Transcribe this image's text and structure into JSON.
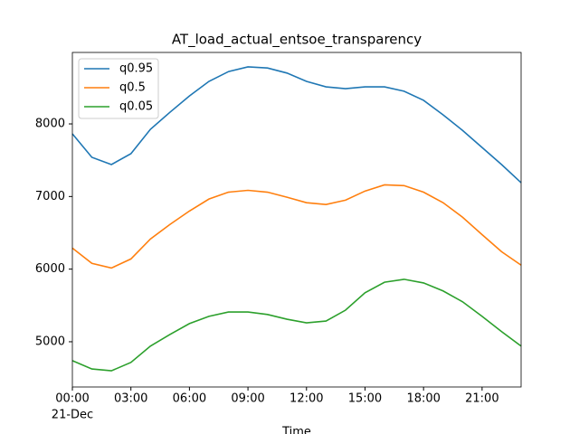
{
  "chart_data": {
    "type": "line",
    "title": "AT_load_actual_entsoe_transparency",
    "x_label": "Time",
    "x": [
      0,
      1,
      2,
      3,
      4,
      5,
      6,
      7,
      8,
      9,
      10,
      11,
      12,
      13,
      14,
      15,
      16,
      17,
      18,
      19,
      20,
      21,
      22,
      23
    ],
    "xlim": [
      0,
      23
    ],
    "xticks": [
      {
        "value": 0,
        "label": "00:00"
      },
      {
        "value": 3,
        "label": "03:00"
      },
      {
        "value": 6,
        "label": "06:00"
      },
      {
        "value": 9,
        "label": "09:00"
      },
      {
        "value": 12,
        "label": "12:00"
      },
      {
        "value": 15,
        "label": "15:00"
      },
      {
        "value": 18,
        "label": "18:00"
      },
      {
        "value": 21,
        "label": "21:00"
      }
    ],
    "x_date_label": "21-Dec",
    "ylim": [
      4377,
      8984
    ],
    "yticks": [
      5000,
      6000,
      7000,
      8000
    ],
    "legend": "upper left",
    "series": [
      {
        "name": "q0.95",
        "color": "#1f77b4",
        "values": [
          7863,
          7540,
          7440,
          7590,
          7925,
          8160,
          8385,
          8585,
          8720,
          8785,
          8770,
          8700,
          8585,
          8510,
          8485,
          8510,
          8510,
          8450,
          8325,
          8125,
          7910,
          7675,
          7440,
          7190
        ]
      },
      {
        "name": "q0.5",
        "color": "#ff7f0e",
        "values": [
          6290,
          6080,
          6015,
          6140,
          6415,
          6615,
          6800,
          6965,
          7060,
          7085,
          7060,
          6990,
          6915,
          6890,
          6950,
          7075,
          7160,
          7150,
          7060,
          6915,
          6715,
          6475,
          6240,
          6055
        ]
      },
      {
        "name": "q0.05",
        "color": "#2ca02c",
        "values": [
          4740,
          4625,
          4600,
          4715,
          4940,
          5100,
          5250,
          5350,
          5410,
          5410,
          5375,
          5310,
          5260,
          5285,
          5435,
          5675,
          5820,
          5860,
          5810,
          5700,
          5550,
          5350,
          5140,
          4940
        ]
      }
    ]
  }
}
